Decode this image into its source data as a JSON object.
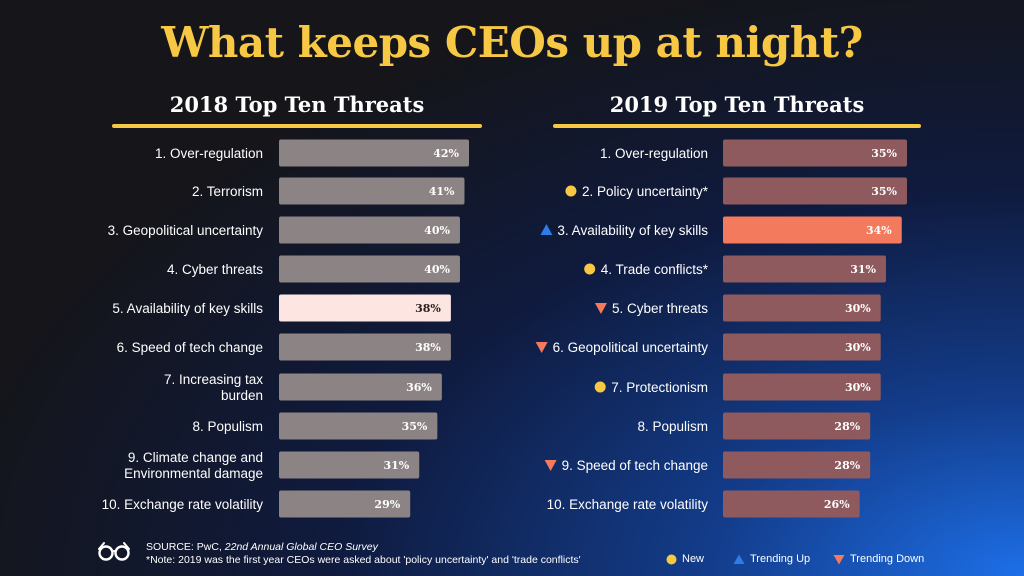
{
  "title": "What keeps CEOs up at night?",
  "colors": {
    "accent": "#f7c843",
    "bar_2018": "#8c8484",
    "bar_2018_highlight": "#fde5e2",
    "bar_2019": "#8e5a5e",
    "bar_2019_highlight": "#f47a5e",
    "trend_up": "#2f7be8",
    "trend_down": "#f47a5e",
    "new": "#f7c843"
  },
  "chart_data": [
    {
      "type": "bar",
      "orientation": "horizontal",
      "title": "2018 Top Ten Threats",
      "categories": [
        "1. Over-regulation",
        "2. Terrorism",
        "3. Geopolitical uncertainty",
        "4. Cyber threats",
        "5. Availability of key skills",
        "6. Speed of tech change",
        "7. Increasing tax burden",
        "8. Populism",
        "9. Climate change and Environmental damage",
        "10. Exchange rate volatility"
      ],
      "label_lines": [
        [
          "1. Over-regulation"
        ],
        [
          "2. Terrorism"
        ],
        [
          "3. Geopolitical uncertainty"
        ],
        [
          "4. Cyber threats"
        ],
        [
          "5. Availability of key skills"
        ],
        [
          "6. Speed of tech change"
        ],
        [
          "7. Increasing tax",
          "burden"
        ],
        [
          "8. Populism"
        ],
        [
          "9. Climate change and",
          "Environmental damage"
        ],
        [
          "10. Exchange rate volatility"
        ]
      ],
      "values": [
        42,
        41,
        40,
        40,
        38,
        38,
        36,
        35,
        31,
        29
      ],
      "value_labels": [
        "42%",
        "41%",
        "40%",
        "40%",
        "38%",
        "38%",
        "36%",
        "35%",
        "31%",
        "29%"
      ],
      "highlight_index": 4,
      "markers": [
        null,
        null,
        null,
        null,
        null,
        null,
        null,
        null,
        null,
        null
      ]
    },
    {
      "type": "bar",
      "orientation": "horizontal",
      "title": "2019 Top Ten Threats",
      "categories": [
        "1. Over-regulation",
        "2. Policy uncertainty*",
        "3. Availability of key skills",
        "4. Trade conflicts*",
        "5. Cyber threats",
        "6. Geopolitical uncertainty",
        "7. Protectionism",
        "8. Populism",
        "9. Speed of tech change",
        "10. Exchange rate volatility"
      ],
      "label_lines": [
        [
          "1. Over-regulation"
        ],
        [
          "2. Policy uncertainty*"
        ],
        [
          "3. Availability of key skills"
        ],
        [
          "4. Trade conflicts*"
        ],
        [
          "5. Cyber threats"
        ],
        [
          "6. Geopolitical uncertainty"
        ],
        [
          "7. Protectionism"
        ],
        [
          "8. Populism"
        ],
        [
          "9. Speed of tech change"
        ],
        [
          "10. Exchange rate volatility"
        ]
      ],
      "values": [
        35,
        35,
        34,
        31,
        30,
        30,
        30,
        28,
        28,
        26
      ],
      "value_labels": [
        "35%",
        "35%",
        "34%",
        "31%",
        "30%",
        "30%",
        "30%",
        "28%",
        "28%",
        "26%"
      ],
      "highlight_index": 2,
      "markers": [
        null,
        "new",
        "up",
        "new",
        "down",
        "down",
        "new",
        null,
        "down",
        null
      ]
    }
  ],
  "footer": {
    "source_prefix": "SOURCE: PwC, ",
    "source_publication": "22nd Annual Global CEO Survey",
    "note": "*Note: 2019 was the first year CEOs were asked about 'policy uncertainty' and 'trade conflicts'",
    "logo_icon": "glasses-icon"
  },
  "legend": {
    "new": "New",
    "up": "Trending Up",
    "down": "Trending Down"
  }
}
